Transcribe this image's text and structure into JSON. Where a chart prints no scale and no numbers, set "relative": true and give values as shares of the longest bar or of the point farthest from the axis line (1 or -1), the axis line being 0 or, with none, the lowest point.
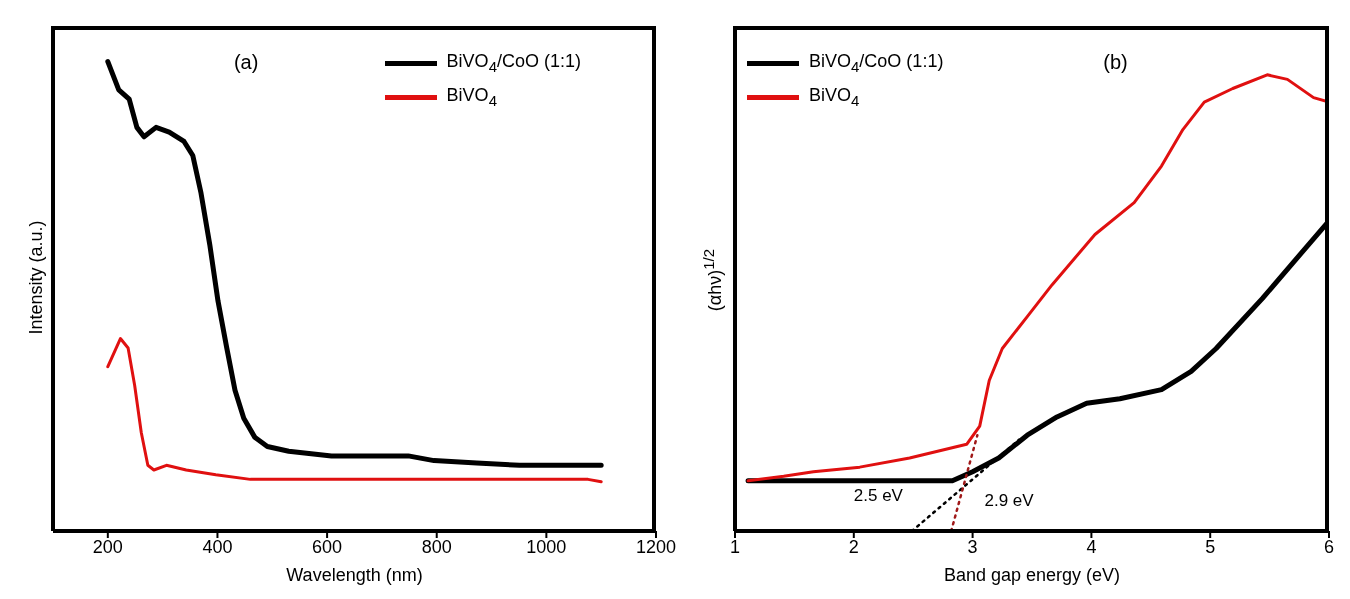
{
  "chart_data": [
    {
      "type": "line",
      "relative": true,
      "xlabel": "Wavelength (nm)",
      "ylabel": "Intensity (a.u.)",
      "xlim": [
        100,
        1200
      ],
      "xticks": [
        200,
        400,
        600,
        800,
        1000,
        1200
      ],
      "legend": "top right",
      "annotations": [
        "(a)"
      ],
      "series": [
        {
          "name": "BiVO$_{4}$/CoO (1:1)",
          "color": "#000000",
          "x": [
            200,
            220,
            239,
            253,
            266,
            288,
            312,
            339,
            355,
            370,
            386,
            401,
            417,
            432,
            448,
            468,
            491,
            530,
            608,
            748,
            795,
            873,
            951,
            1100
          ],
          "values": [
            1.0,
            0.94,
            0.92,
            0.86,
            0.84,
            0.86,
            0.85,
            0.83,
            0.8,
            0.72,
            0.61,
            0.49,
            0.39,
            0.3,
            0.24,
            0.2,
            0.18,
            0.17,
            0.16,
            0.16,
            0.15,
            0.145,
            0.14,
            0.14
          ]
        },
        {
          "name": "BiVO$_{4}$",
          "color": "#e01010",
          "x": [
            200,
            223,
            237,
            249,
            261,
            273,
            284,
            307,
            343,
            397,
            460,
            639,
            1076,
            1100
          ],
          "values": [
            0.35,
            0.41,
            0.39,
            0.31,
            0.21,
            0.14,
            0.13,
            0.14,
            0.13,
            0.12,
            0.11,
            0.11,
            0.11,
            0.105
          ]
        }
      ]
    },
    {
      "type": "line",
      "relative": true,
      "xlabel": "Band gap energy (eV)",
      "ylabel": "(αhν)$^{1/2}$",
      "xlim": [
        1,
        6
      ],
      "xticks": [
        1,
        2,
        3,
        4,
        5,
        6
      ],
      "legend": "top left",
      "annotations": [
        "(b)",
        "2.5 eV",
        "2.9 eV"
      ],
      "series": [
        {
          "name": "BiVO$_{4}$/CoO (1:1)",
          "color": "#000000",
          "x": [
            1.11,
            2.83,
            3.0,
            3.22,
            3.46,
            3.71,
            3.96,
            4.24,
            4.59,
            4.84,
            5.05,
            5.44,
            6.0
          ],
          "values": [
            0.11,
            0.11,
            0.13,
            0.16,
            0.21,
            0.25,
            0.28,
            0.29,
            0.31,
            0.35,
            0.4,
            0.51,
            0.68
          ]
        },
        {
          "name": "BiVO$_{4}$",
          "color": "#e01010",
          "x": [
            1.11,
            1.41,
            1.66,
            2.05,
            2.47,
            2.95,
            3.06,
            3.14,
            3.25,
            3.46,
            3.67,
            4.03,
            4.36,
            4.59,
            4.77,
            4.95,
            5.19,
            5.48,
            5.65,
            5.87,
            6.0
          ],
          "values": [
            0.11,
            0.12,
            0.13,
            0.14,
            0.16,
            0.19,
            0.23,
            0.33,
            0.4,
            0.47,
            0.54,
            0.65,
            0.72,
            0.8,
            0.88,
            0.94,
            0.97,
            1.0,
            0.99,
            0.95,
            0.94
          ]
        },
        {
          "type": "line",
          "line_style": "dotted",
          "color": "#000000",
          "x": [
            2.49,
            3.39
          ],
          "values": [
            0,
            0.2
          ]
        },
        {
          "type": "line",
          "line_style": "dotted",
          "color": "#a01818",
          "x": [
            2.82,
            3.04
          ],
          "values": [
            0,
            0.21
          ]
        }
      ]
    }
  ]
}
